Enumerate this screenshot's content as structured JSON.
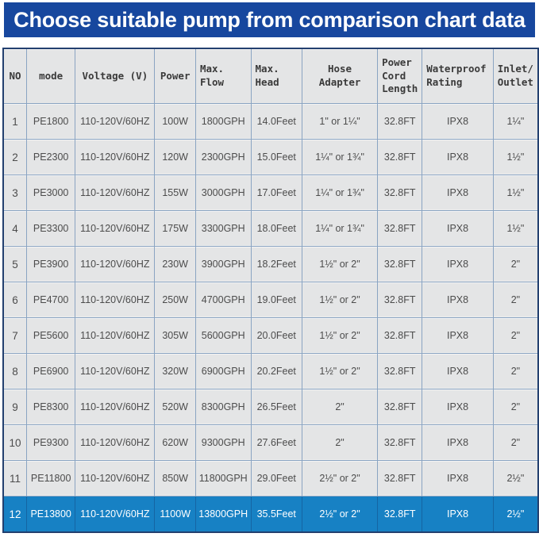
{
  "banner": {
    "title": "Choose suitable pump from comparison chart data"
  },
  "chart_data": {
    "type": "table",
    "title": "Choose suitable pump from comparison chart data",
    "columns": [
      {
        "key": "no",
        "label": "NO"
      },
      {
        "key": "mode",
        "label": "mode"
      },
      {
        "key": "voltage",
        "label": "Voltage (V)"
      },
      {
        "key": "power",
        "label": "Power"
      },
      {
        "key": "flow",
        "label": "Max.\nFlow"
      },
      {
        "key": "head",
        "label": "Max.\nHead"
      },
      {
        "key": "hose",
        "label": "Hose Adapter"
      },
      {
        "key": "cord",
        "label": "Power\nCord\nLength"
      },
      {
        "key": "waterproof",
        "label": "Waterproof\nRating"
      },
      {
        "key": "inlet",
        "label": "Inlet/\nOutlet"
      }
    ],
    "rows": [
      [
        "1",
        "PE1800",
        "110-120V/60HZ",
        "100W",
        "1800GPH",
        "14.0Feet",
        "1\" or 1¼\"",
        "32.8FT",
        "IPX8",
        "1¼\""
      ],
      [
        "2",
        "PE2300",
        "110-120V/60HZ",
        "120W",
        "2300GPH",
        "15.0Feet",
        "1¼\" or 1¾\"",
        "32.8FT",
        "IPX8",
        "1½\""
      ],
      [
        "3",
        "PE3000",
        "110-120V/60HZ",
        "155W",
        "3000GPH",
        "17.0Feet",
        "1¼\" or 1¾\"",
        "32.8FT",
        "IPX8",
        "1½\""
      ],
      [
        "4",
        "PE3300",
        "110-120V/60HZ",
        "175W",
        "3300GPH",
        "18.0Feet",
        "1¼\" or 1¾\"",
        "32.8FT",
        "IPX8",
        "1½\""
      ],
      [
        "5",
        "PE3900",
        "110-120V/60HZ",
        "230W",
        "3900GPH",
        "18.2Feet",
        "1½\" or 2\"",
        "32.8FT",
        "IPX8",
        "2\""
      ],
      [
        "6",
        "PE4700",
        "110-120V/60HZ",
        "250W",
        "4700GPH",
        "19.0Feet",
        "1½\" or 2\"",
        "32.8FT",
        "IPX8",
        "2\""
      ],
      [
        "7",
        "PE5600",
        "110-120V/60HZ",
        "305W",
        "5600GPH",
        "20.0Feet",
        "1½\" or 2\"",
        "32.8FT",
        "IPX8",
        "2\""
      ],
      [
        "8",
        "PE6900",
        "110-120V/60HZ",
        "320W",
        "6900GPH",
        "20.2Feet",
        "1½\" or 2\"",
        "32.8FT",
        "IPX8",
        "2\""
      ],
      [
        "9",
        "PE8300",
        "110-120V/60HZ",
        "520W",
        "8300GPH",
        "26.5Feet",
        "2\"",
        "32.8FT",
        "IPX8",
        "2\""
      ],
      [
        "10",
        "PE9300",
        "110-120V/60HZ",
        "620W",
        "9300GPH",
        "27.6Feet",
        "2\"",
        "32.8FT",
        "IPX8",
        "2\""
      ],
      [
        "11",
        "PE11800",
        "110-120V/60HZ",
        "850W",
        "11800GPH",
        "29.0Feet",
        "2½\" or 2\"",
        "32.8FT",
        "IPX8",
        "2½\""
      ],
      [
        "12",
        "PE13800",
        "110-120V/60HZ",
        "1100W",
        "13800GPH",
        "35.5Feet",
        "2½\" or 2\"",
        "32.8FT",
        "IPX8",
        "2½\""
      ]
    ],
    "highlight_row_number": "12",
    "legend_position": "none",
    "grid": true
  },
  "colors": {
    "banner_bg": "#17479e",
    "highlight_bg": "#1781c4",
    "cell_bg": "#e4e5e6",
    "border_outer": "#23406f",
    "border_inner": "#8aa4c2",
    "body_text": "#4c4c4c"
  }
}
